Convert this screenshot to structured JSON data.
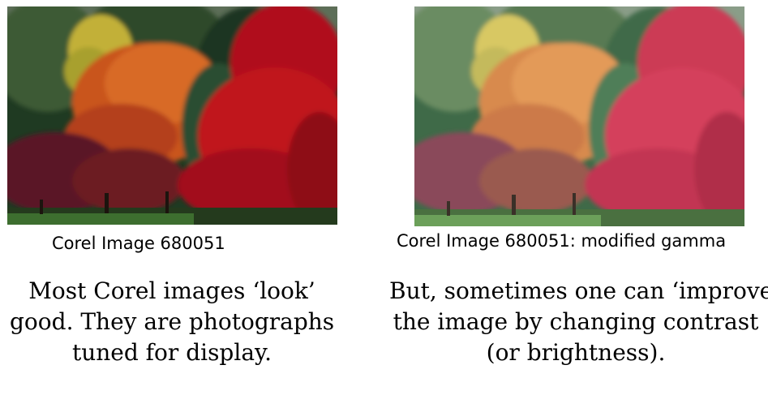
{
  "slide": {
    "left": {
      "image_subject": "autumn trees photograph",
      "caption": "Corel Image 680051",
      "description_lines": [
        "Most Corel images ‘look’",
        "good. They are photographs",
        "tuned for display."
      ]
    },
    "right": {
      "image_subject": "autumn trees photograph with modified gamma",
      "caption": "Corel Image 680051: modified gamma",
      "description_lines": [
        "But, sometimes one can ‘improve’",
        "the image by changing contrast",
        "(or brightness)."
      ]
    }
  },
  "colors": {
    "text": "#000000",
    "background": "#ffffff"
  }
}
